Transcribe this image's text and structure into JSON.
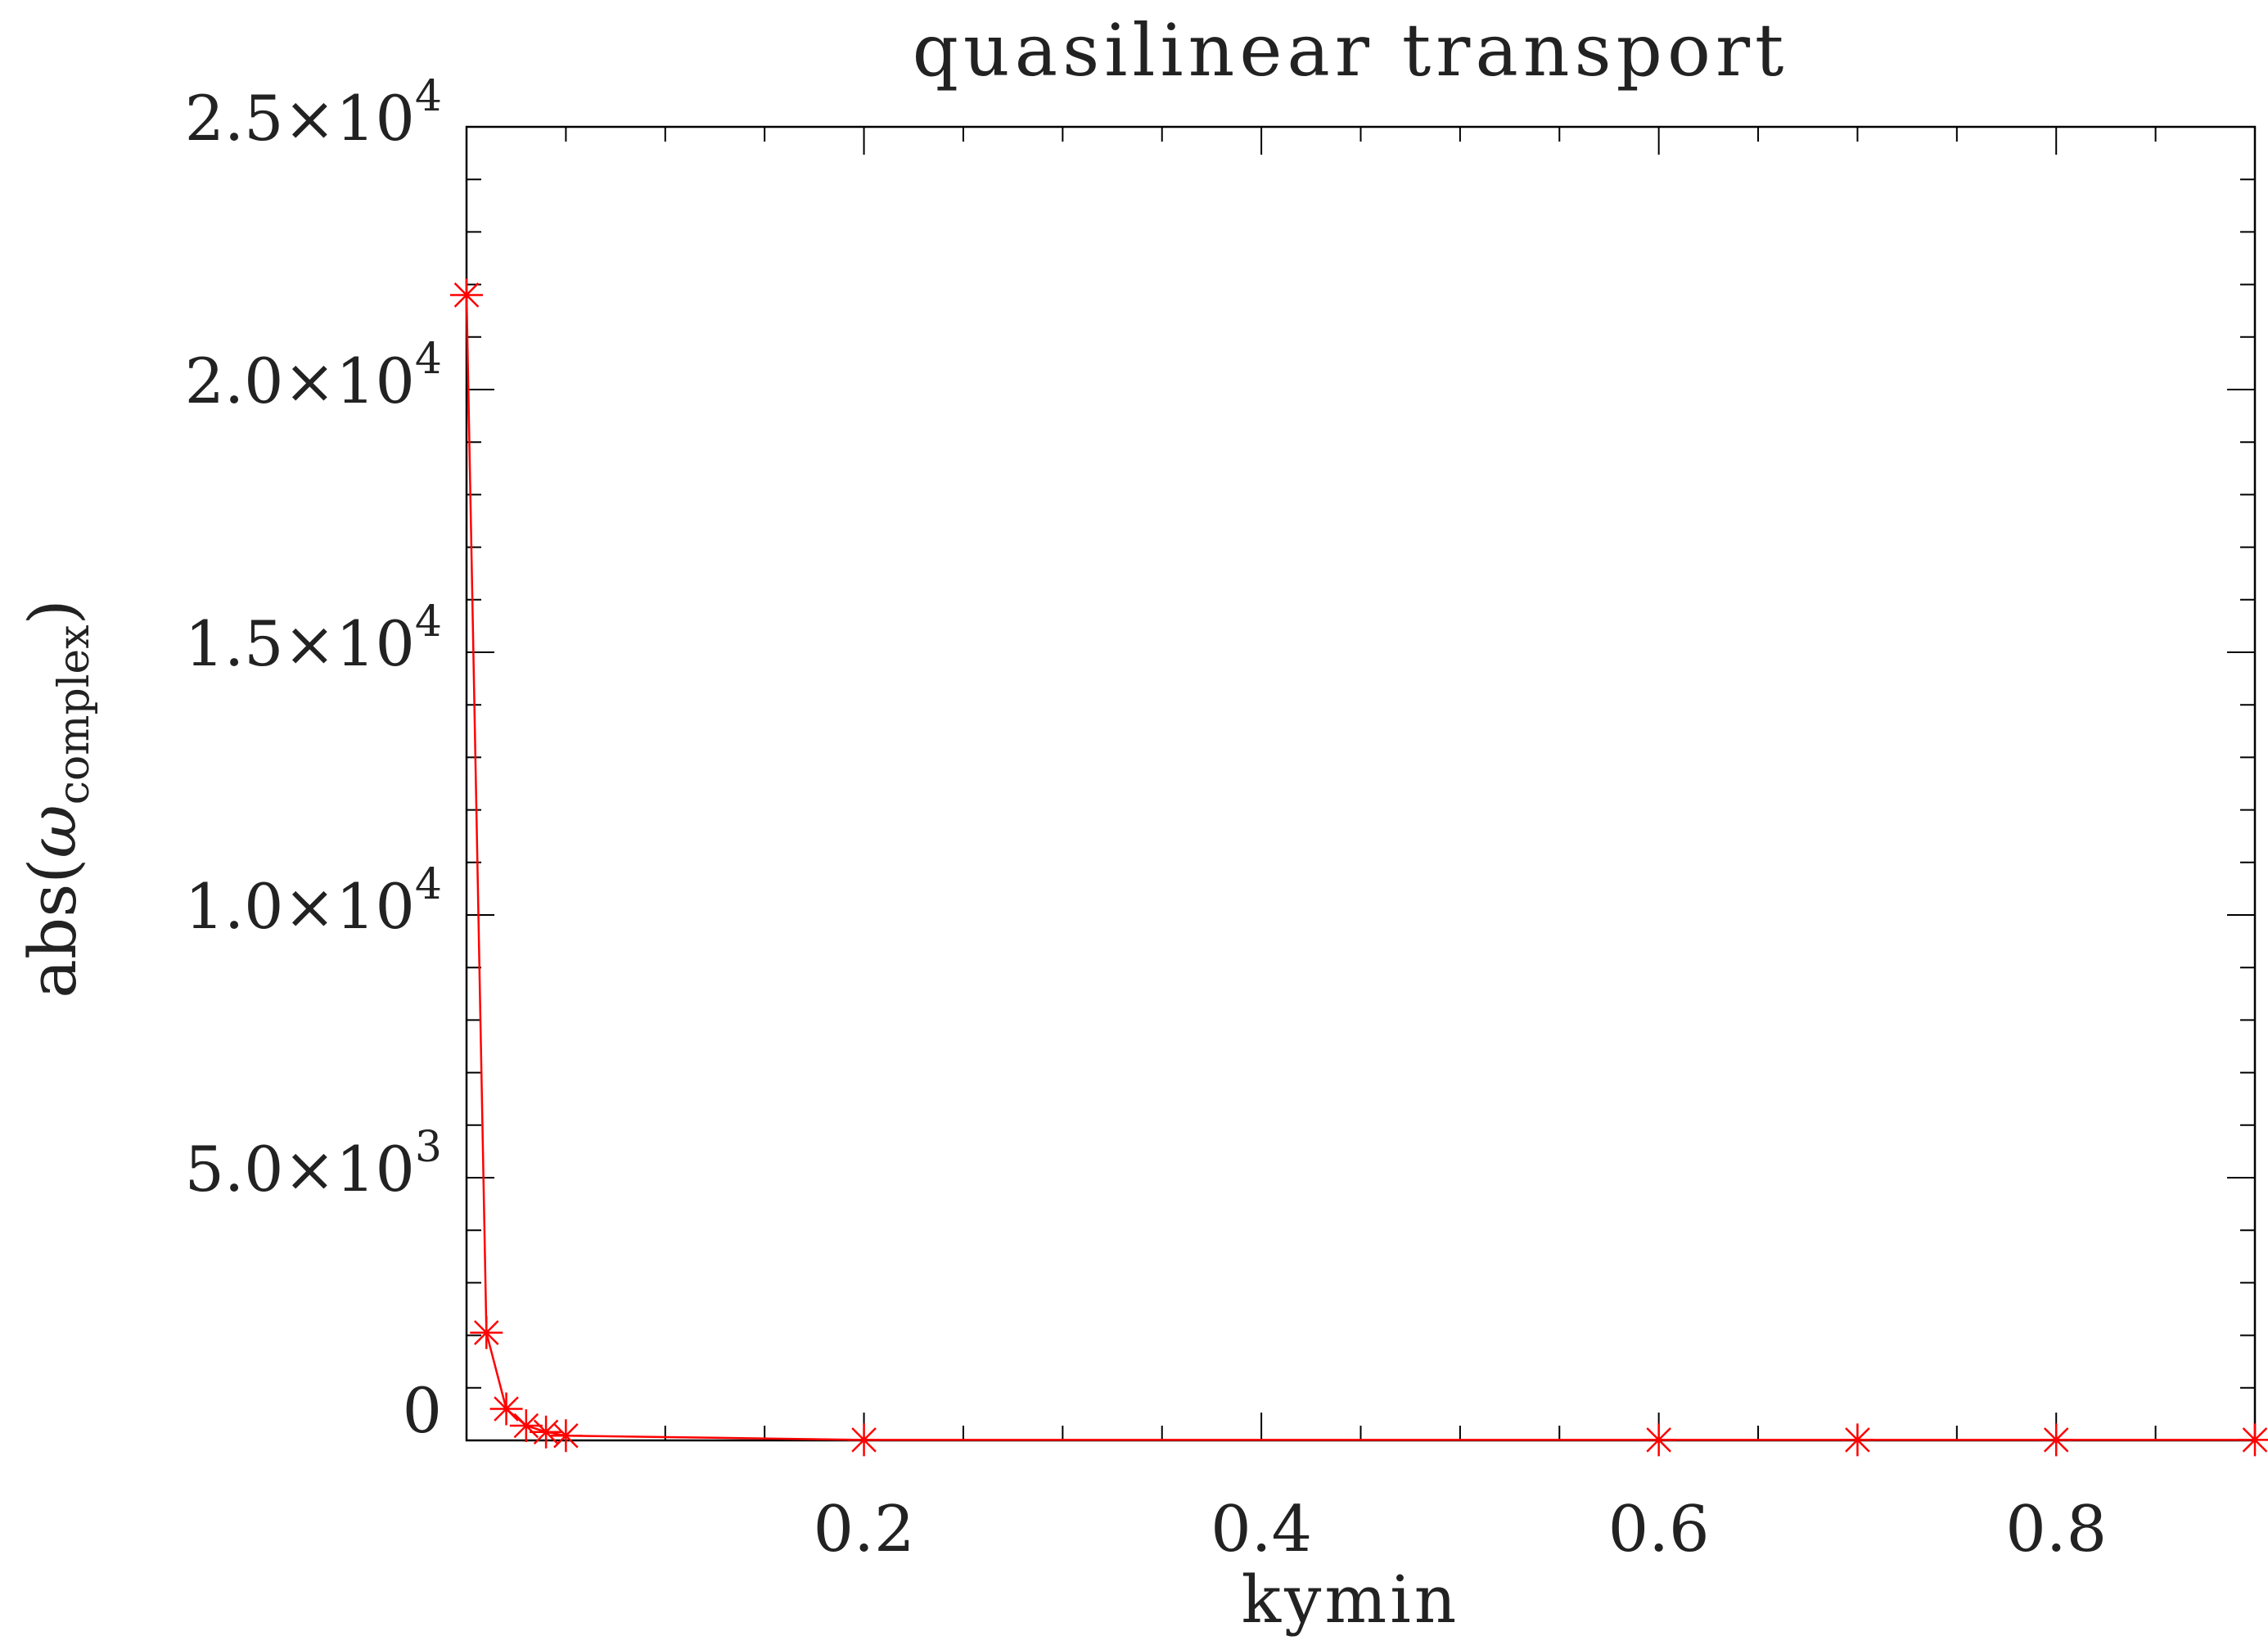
{
  "chart_data": {
    "type": "line",
    "title": "quasilinear transport",
    "xlabel": "kymin",
    "ylabel": {
      "prefix": "abs(",
      "symbol": "ω",
      "subscript": "complex",
      "suffix": ")"
    },
    "xlim": [
      0.0,
      0.9
    ],
    "ylim": [
      0,
      25000
    ],
    "x_ticks": [
      0.2,
      0.4,
      0.6,
      0.8
    ],
    "x_tick_labels": [
      "0.2",
      "0.4",
      "0.6",
      "0.8"
    ],
    "y_ticks": [
      0,
      5000,
      10000,
      15000,
      20000,
      25000
    ],
    "y_tick_labels": [
      {
        "mantissa": "0",
        "exponent": ""
      },
      {
        "mantissa": "5.0×10",
        "exponent": "3"
      },
      {
        "mantissa": "1.0×10",
        "exponent": "4"
      },
      {
        "mantissa": "1.5×10",
        "exponent": "4"
      },
      {
        "mantissa": "2.0×10",
        "exponent": "4"
      },
      {
        "mantissa": "2.5×10",
        "exponent": "4"
      }
    ],
    "grid": false,
    "series": [
      {
        "color": "#ff0000",
        "marker": "asterisk",
        "x": [
          0.0,
          0.01,
          0.02,
          0.03,
          0.04,
          0.05,
          0.2,
          0.6,
          0.7,
          0.8,
          0.9
        ],
        "y": [
          21800,
          2050,
          600,
          280,
          160,
          90,
          10,
          10,
          10,
          10,
          10
        ]
      }
    ]
  }
}
